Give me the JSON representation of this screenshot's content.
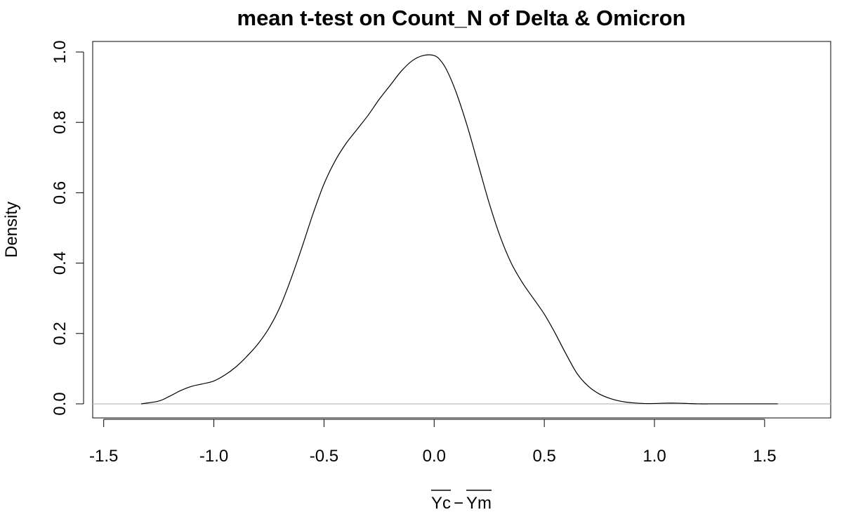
{
  "chart_data": {
    "type": "line",
    "title": "mean t-test on Count_N of Delta & Omicron",
    "xlabel": "Yc − Ym",
    "xlabel_parts": {
      "left": "Yc",
      "operator": "−",
      "right": "Ym",
      "overlines": true
    },
    "ylabel": "Density",
    "xlim": [
      -1.55,
      1.8
    ],
    "ylim": [
      -0.04,
      1.03
    ],
    "x_ticks": [
      -1.5,
      -1.0,
      -0.5,
      0.0,
      0.5,
      1.0,
      1.5
    ],
    "x_tick_labels": [
      "-1.5",
      "-1.0",
      "-0.5",
      "0.0",
      "0.5",
      "1.0",
      "1.5"
    ],
    "y_ticks": [
      0.0,
      0.2,
      0.4,
      0.6,
      0.8,
      1.0
    ],
    "y_tick_labels": [
      "0.0",
      "0.2",
      "0.4",
      "0.6",
      "0.8",
      "1.0"
    ],
    "grid": false,
    "reference_line": {
      "y": 0,
      "color": "#bebebe"
    },
    "series": [
      {
        "color": "#000000",
        "x": [
          -1.33,
          -1.25,
          -1.2,
          -1.15,
          -1.1,
          -1.05,
          -1.0,
          -0.95,
          -0.9,
          -0.85,
          -0.8,
          -0.75,
          -0.7,
          -0.65,
          -0.6,
          -0.55,
          -0.5,
          -0.45,
          -0.4,
          -0.35,
          -0.3,
          -0.25,
          -0.2,
          -0.15,
          -0.1,
          -0.05,
          0.0,
          0.03,
          0.06,
          0.1,
          0.15,
          0.2,
          0.25,
          0.3,
          0.35,
          0.4,
          0.45,
          0.5,
          0.55,
          0.6,
          0.65,
          0.7,
          0.75,
          0.8,
          0.85,
          0.9,
          0.95,
          1.0,
          1.05,
          1.1,
          1.15,
          1.2,
          1.25,
          1.3,
          1.35,
          1.4,
          1.45,
          1.5,
          1.56
        ],
        "y": [
          0.0,
          0.008,
          0.022,
          0.038,
          0.05,
          0.057,
          0.065,
          0.082,
          0.105,
          0.135,
          0.17,
          0.215,
          0.275,
          0.355,
          0.445,
          0.54,
          0.625,
          0.69,
          0.74,
          0.78,
          0.82,
          0.865,
          0.905,
          0.945,
          0.975,
          0.99,
          0.99,
          0.975,
          0.945,
          0.885,
          0.79,
          0.68,
          0.57,
          0.475,
          0.4,
          0.345,
          0.3,
          0.255,
          0.2,
          0.14,
          0.085,
          0.05,
          0.028,
          0.015,
          0.007,
          0.003,
          0.001,
          0.001,
          0.002,
          0.002,
          0.001,
          0.0,
          0.0,
          0.0,
          0.0,
          0.0,
          0.0,
          0.0,
          0.0
        ]
      }
    ]
  }
}
